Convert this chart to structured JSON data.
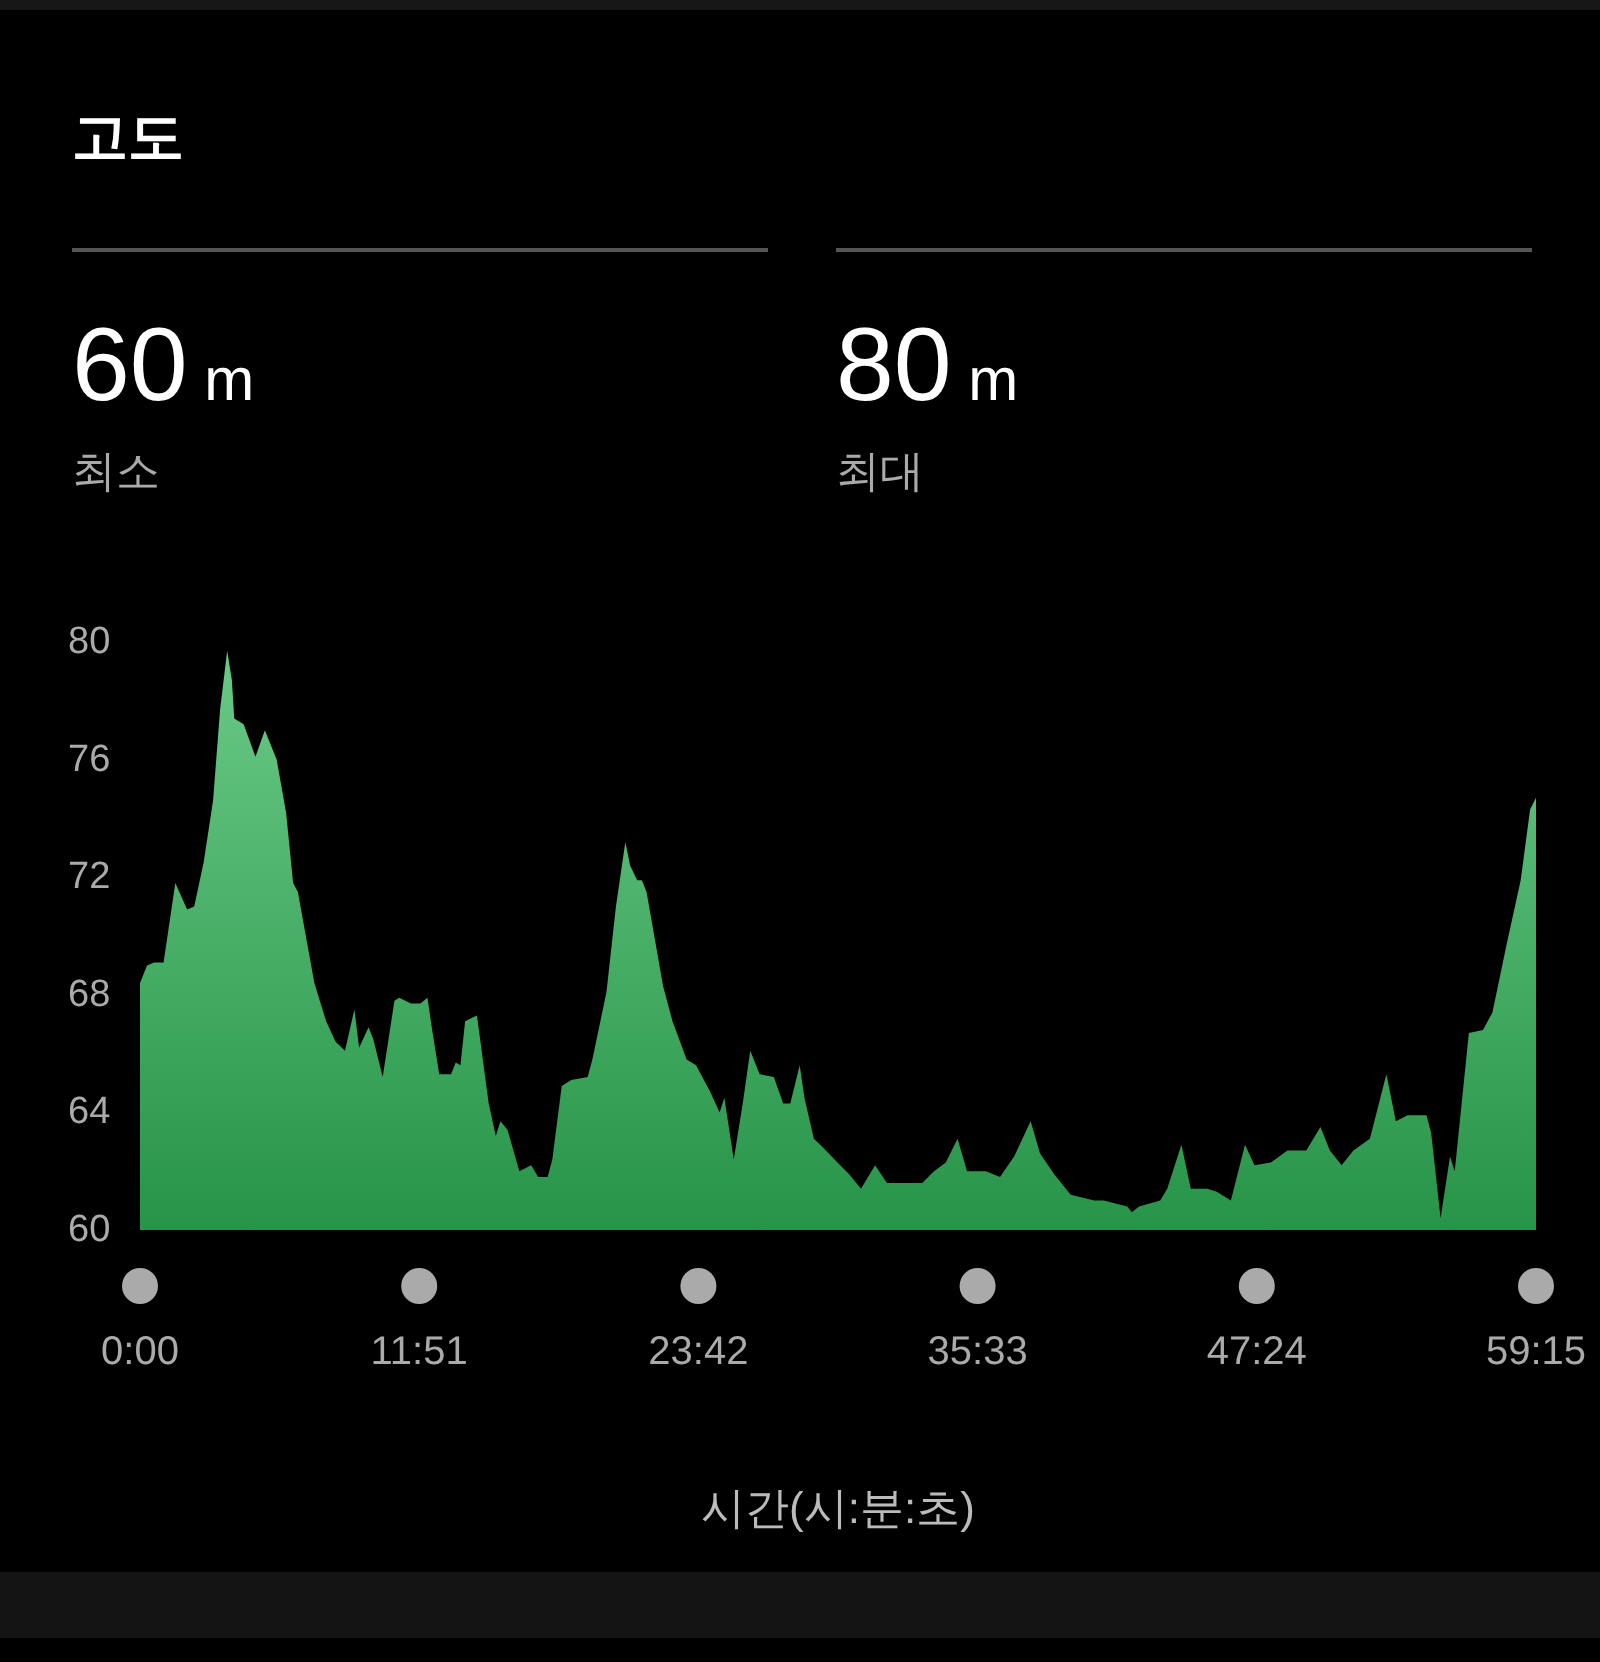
{
  "chart_data": {
    "type": "area",
    "title": "고도",
    "annotations": [
      "60 m",
      "최소",
      "80 m",
      "최대"
    ],
    "xlabel": "시간(시:분:초)",
    "x": [
      0,
      0.3,
      0.6,
      1.0,
      1.5,
      2.0,
      2.3,
      2.7,
      3.1,
      3.4,
      3.7,
      3.9,
      4.0,
      4.4,
      4.9,
      5.3,
      5.8,
      6.2,
      6.5,
      6.7,
      7.4,
      7.9,
      8.3,
      8.7,
      9.1,
      9.3,
      9.7,
      9.9,
      10.3,
      10.8,
      11.0,
      11.5,
      11.9,
      12.2,
      12.4,
      12.7,
      13.2,
      13.4,
      13.6,
      13.8,
      14.3,
      14.8,
      15.1,
      15.3,
      15.6,
      16.1,
      16.6,
      16.9,
      17.3,
      17.5,
      17.9,
      18.3,
      19.0,
      19.2,
      19.8,
      20.2,
      20.6,
      20.8,
      21.1,
      21.3,
      21.5,
      22.2,
      22.6,
      23.2,
      23.6,
      24.2,
      24.6,
      24.8,
      25.2,
      25.6,
      25.9,
      26.3,
      26.9,
      27.3,
      27.6,
      28.0,
      28.2,
      28.6,
      29.0,
      29.6,
      30.1,
      30.6,
      31.2,
      31.7,
      32.5,
      33.2,
      33.7,
      34.2,
      34.7,
      35.1,
      35.9,
      36.5,
      37.1,
      37.8,
      38.2,
      38.8,
      39.5,
      40.5,
      40.9,
      41.9,
      42.1,
      42.4,
      43.3,
      43.6,
      44.2,
      44.6,
      45.3,
      45.7,
      46.3,
      46.9,
      47.3,
      48.0,
      48.7,
      49.5,
      50.1,
      50.5,
      51.0,
      51.5,
      52.2,
      52.9,
      53.3,
      53.8,
      54.6,
      54.8,
      55.2,
      55.6,
      55.8,
      56.4,
      57.0,
      57.4,
      58.0,
      58.6,
      59.0,
      59.25
    ],
    "values": [
      68.4,
      69.0,
      69.1,
      69.1,
      71.8,
      70.9,
      71.0,
      72.5,
      74.6,
      77.7,
      79.7,
      78.7,
      77.4,
      77.2,
      76.1,
      77.0,
      76.0,
      74.2,
      71.8,
      71.5,
      68.4,
      67.1,
      66.4,
      66.1,
      67.5,
      66.2,
      66.9,
      66.5,
      65.2,
      67.8,
      67.9,
      67.7,
      67.7,
      67.9,
      66.8,
      65.3,
      65.3,
      65.7,
      65.6,
      67.1,
      67.3,
      64.3,
      63.2,
      63.7,
      63.4,
      62.0,
      62.2,
      61.8,
      61.8,
      62.4,
      64.9,
      65.1,
      65.2,
      65.8,
      68.1,
      71.0,
      73.2,
      72.4,
      71.9,
      71.9,
      71.5,
      68.3,
      67.1,
      65.8,
      65.6,
      64.7,
      64.0,
      64.5,
      62.4,
      64.4,
      66.1,
      65.3,
      65.2,
      64.3,
      64.3,
      65.6,
      64.5,
      63.1,
      62.8,
      62.3,
      61.9,
      61.4,
      62.2,
      61.6,
      61.6,
      61.6,
      62.0,
      62.3,
      63.1,
      62.0,
      62.0,
      61.8,
      62.5,
      63.7,
      62.6,
      61.9,
      61.2,
      61.0,
      61.0,
      60.8,
      60.6,
      60.8,
      61.0,
      61.4,
      62.9,
      61.4,
      61.4,
      61.3,
      61.0,
      62.9,
      62.2,
      62.3,
      62.7,
      62.7,
      63.5,
      62.7,
      62.2,
      62.7,
      63.1,
      65.3,
      63.7,
      63.9,
      63.9,
      63.3,
      60.4,
      62.5,
      62.0,
      66.7,
      66.8,
      67.4,
      69.7,
      71.9,
      74.3,
      74.7
    ],
    "color": "#30b558",
    "xlim": [
      0,
      59.25
    ],
    "ylim": [
      60,
      80
    ],
    "xticks": [
      {
        "value": 0,
        "label": "0:00"
      },
      {
        "value": 11.85,
        "label": "11:51"
      },
      {
        "value": 23.7,
        "label": "23:42"
      },
      {
        "value": 35.55,
        "label": "35:33"
      },
      {
        "value": 47.4,
        "label": "47:24"
      },
      {
        "value": 59.25,
        "label": "59:15"
      }
    ],
    "yticks": [
      60,
      64,
      68,
      72,
      76,
      80
    ]
  }
}
